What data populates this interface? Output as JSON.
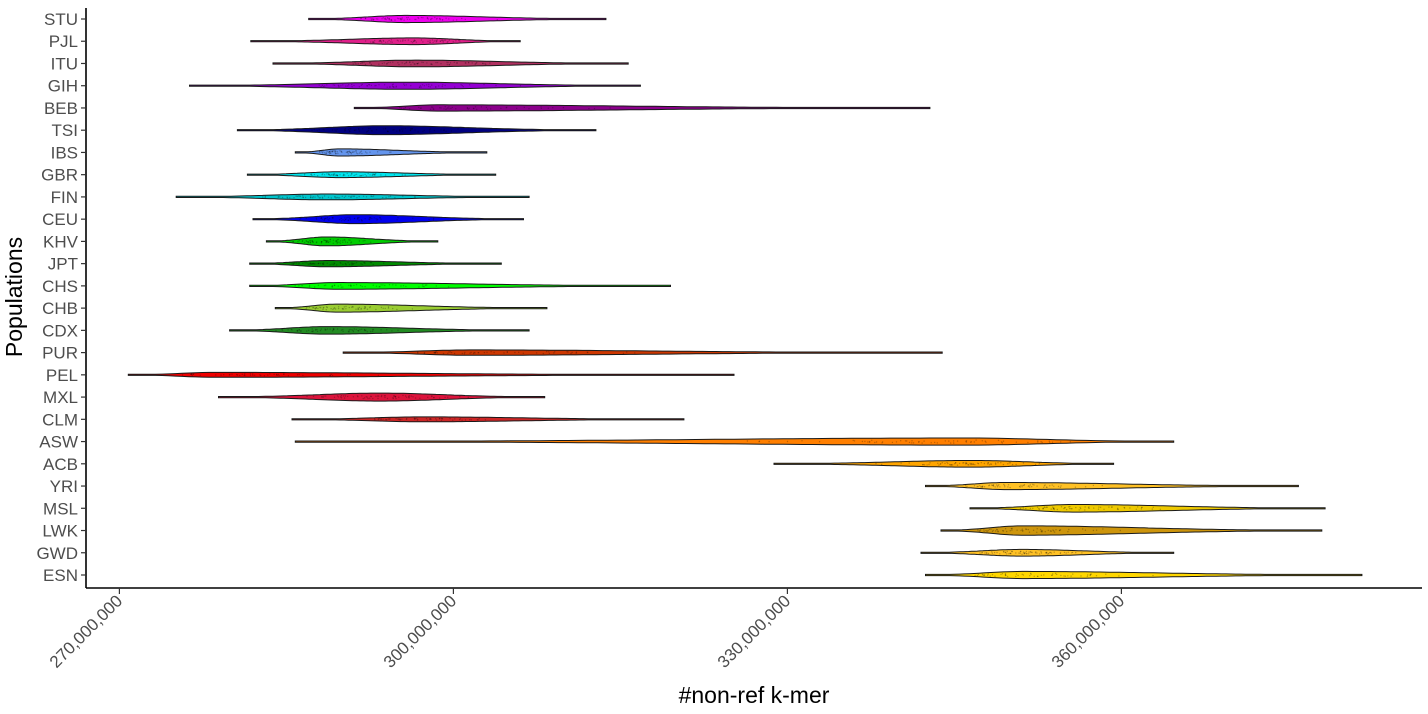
{
  "chart_data": {
    "type": "violin",
    "xlabel": "#non-ref k-mer",
    "ylabel": "Populations",
    "xlim": [
      267000000,
      387000000
    ],
    "x_ticks": [
      270000000,
      300000000,
      330000000,
      360000000
    ],
    "x_tick_labels": [
      "270,000,000",
      "300,000,000",
      "330,000,000",
      "360,000,000"
    ],
    "grid": false,
    "series": [
      {
        "name": "STU",
        "color": "#ee00ee",
        "min": 287000000,
        "peak": 295700000,
        "max": 313700000,
        "width": 0.32
      },
      {
        "name": "PJL",
        "color": "#e0208a",
        "min": 281800000,
        "peak": 296500000,
        "max": 306000000,
        "width": 0.3
      },
      {
        "name": "ITU",
        "color": "#b03060",
        "min": 283800000,
        "peak": 296500000,
        "max": 315700000,
        "width": 0.3
      },
      {
        "name": "GIH",
        "color": "#9400d3",
        "min": 276300000,
        "peak": 295700000,
        "max": 316800000,
        "width": 0.32
      },
      {
        "name": "BEB",
        "color": "#8b008b",
        "min": 291100000,
        "peak": 298600000,
        "max": 342800000,
        "width": 0.28
      },
      {
        "name": "TSI",
        "color": "#000080",
        "min": 280600000,
        "peak": 293800000,
        "max": 312800000,
        "width": 0.4
      },
      {
        "name": "IBS",
        "color": "#6495ed",
        "min": 285800000,
        "peak": 289800000,
        "max": 303000000,
        "width": 0.32
      },
      {
        "name": "GBR",
        "color": "#00e5ee",
        "min": 281500000,
        "peak": 289800000,
        "max": 303800000,
        "width": 0.26
      },
      {
        "name": "FIN",
        "color": "#00c5cd",
        "min": 275100000,
        "peak": 288600000,
        "max": 306800000,
        "width": 0.26
      },
      {
        "name": "CEU",
        "color": "#0000ee",
        "min": 282000000,
        "peak": 291200000,
        "max": 306300000,
        "width": 0.4
      },
      {
        "name": "KHV",
        "color": "#00cd00",
        "min": 283200000,
        "peak": 288600000,
        "max": 298600000,
        "width": 0.4
      },
      {
        "name": "JPT",
        "color": "#008b00",
        "min": 281700000,
        "peak": 288600000,
        "max": 304300000,
        "width": 0.28
      },
      {
        "name": "CHS",
        "color": "#00ff00",
        "min": 281700000,
        "peak": 289600000,
        "max": 319500000,
        "width": 0.3
      },
      {
        "name": "CHB",
        "color": "#9acd32",
        "min": 284000000,
        "peak": 289600000,
        "max": 308400000,
        "width": 0.36
      },
      {
        "name": "CDX",
        "color": "#228b22",
        "min": 279900000,
        "peak": 288600000,
        "max": 306800000,
        "width": 0.34
      },
      {
        "name": "PUR",
        "color": "#cd3700",
        "min": 290100000,
        "peak": 301500000,
        "max": 343900000,
        "width": 0.24
      },
      {
        "name": "PEL",
        "color": "#ee0000",
        "min": 270800000,
        "peak": 278500000,
        "max": 325200000,
        "width": 0.22
      },
      {
        "name": "MXL",
        "color": "#dc143c",
        "min": 278900000,
        "peak": 293400000,
        "max": 308200000,
        "width": 0.36
      },
      {
        "name": "CLM",
        "color": "#cd2626",
        "min": 285500000,
        "peak": 297200000,
        "max": 320700000,
        "width": 0.22
      },
      {
        "name": "ASW",
        "color": "#ff7f00",
        "min": 285800000,
        "peak": 346000000,
        "max": 364700000,
        "width": 0.32
      },
      {
        "name": "ACB",
        "color": "#ffa500",
        "min": 328800000,
        "peak": 346500000,
        "max": 359300000,
        "width": 0.3
      },
      {
        "name": "YRI",
        "color": "#ffc125",
        "min": 342400000,
        "peak": 349600000,
        "max": 375900000,
        "width": 0.32
      },
      {
        "name": "MSL",
        "color": "#eec900",
        "min": 346400000,
        "peak": 355700000,
        "max": 378300000,
        "width": 0.34
      },
      {
        "name": "LWK",
        "color": "#cd950c",
        "min": 343800000,
        "peak": 351100000,
        "max": 378000000,
        "width": 0.42
      },
      {
        "name": "GWD",
        "color": "#ffc125",
        "min": 342000000,
        "peak": 351100000,
        "max": 364700000,
        "width": 0.3
      },
      {
        "name": "ESN",
        "color": "#ffd700",
        "min": 342400000,
        "peak": 351100000,
        "max": 381600000,
        "width": 0.32
      }
    ]
  }
}
